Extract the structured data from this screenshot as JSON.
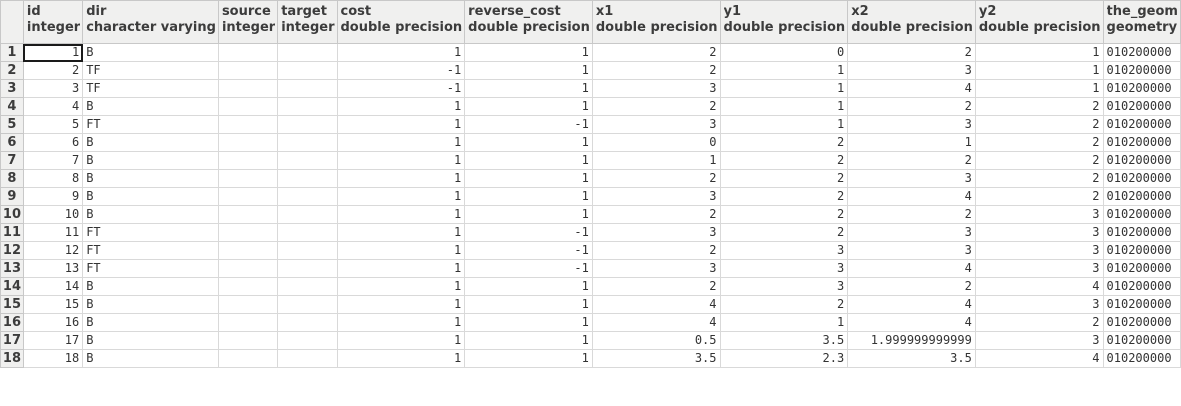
{
  "columns": [
    {
      "name": "id",
      "type": "integer",
      "align": "num"
    },
    {
      "name": "dir",
      "type": "character varying",
      "align": "txt"
    },
    {
      "name": "source",
      "type": "integer",
      "align": "num"
    },
    {
      "name": "target",
      "type": "integer",
      "align": "num"
    },
    {
      "name": "cost",
      "type": "double precision",
      "align": "num"
    },
    {
      "name": "reverse_cost",
      "type": "double precision",
      "align": "num"
    },
    {
      "name": "x1",
      "type": "double precision",
      "align": "num"
    },
    {
      "name": "y1",
      "type": "double precision",
      "align": "num"
    },
    {
      "name": "x2",
      "type": "double precision",
      "align": "num"
    },
    {
      "name": "y2",
      "type": "double precision",
      "align": "num"
    },
    {
      "name": "the_geom",
      "type": "geometry",
      "align": "txt"
    }
  ],
  "rows": [
    [
      "1",
      "1",
      "B",
      "",
      "",
      "1",
      "1",
      "2",
      "0",
      "2",
      "1",
      "010200000"
    ],
    [
      "2",
      "2",
      "TF",
      "",
      "",
      "-1",
      "1",
      "2",
      "1",
      "3",
      "1",
      "010200000"
    ],
    [
      "3",
      "3",
      "TF",
      "",
      "",
      "-1",
      "1",
      "3",
      "1",
      "4",
      "1",
      "010200000"
    ],
    [
      "4",
      "4",
      "B",
      "",
      "",
      "1",
      "1",
      "2",
      "1",
      "2",
      "2",
      "010200000"
    ],
    [
      "5",
      "5",
      "FT",
      "",
      "",
      "1",
      "-1",
      "3",
      "1",
      "3",
      "2",
      "010200000"
    ],
    [
      "6",
      "6",
      "B",
      "",
      "",
      "1",
      "1",
      "0",
      "2",
      "1",
      "2",
      "010200000"
    ],
    [
      "7",
      "7",
      "B",
      "",
      "",
      "1",
      "1",
      "1",
      "2",
      "2",
      "2",
      "010200000"
    ],
    [
      "8",
      "8",
      "B",
      "",
      "",
      "1",
      "1",
      "2",
      "2",
      "3",
      "2",
      "010200000"
    ],
    [
      "9",
      "9",
      "B",
      "",
      "",
      "1",
      "1",
      "3",
      "2",
      "4",
      "2",
      "010200000"
    ],
    [
      "10",
      "10",
      "B",
      "",
      "",
      "1",
      "1",
      "2",
      "2",
      "2",
      "3",
      "010200000"
    ],
    [
      "11",
      "11",
      "FT",
      "",
      "",
      "1",
      "-1",
      "3",
      "2",
      "3",
      "3",
      "010200000"
    ],
    [
      "12",
      "12",
      "FT",
      "",
      "",
      "1",
      "-1",
      "2",
      "3",
      "3",
      "3",
      "010200000"
    ],
    [
      "13",
      "13",
      "FT",
      "",
      "",
      "1",
      "-1",
      "3",
      "3",
      "4",
      "3",
      "010200000"
    ],
    [
      "14",
      "14",
      "B",
      "",
      "",
      "1",
      "1",
      "2",
      "3",
      "2",
      "4",
      "010200000"
    ],
    [
      "15",
      "15",
      "B",
      "",
      "",
      "1",
      "1",
      "4",
      "2",
      "4",
      "3",
      "010200000"
    ],
    [
      "16",
      "16",
      "B",
      "",
      "",
      "1",
      "1",
      "4",
      "1",
      "4",
      "2",
      "010200000"
    ],
    [
      "17",
      "17",
      "B",
      "",
      "",
      "1",
      "1",
      "0.5",
      "3.5",
      "1.999999999999",
      "3",
      "010200000"
    ],
    [
      "18",
      "18",
      "B",
      "",
      "",
      "1",
      "1",
      "3.5",
      "2.3",
      "3.5",
      "4",
      "010200000"
    ]
  ]
}
